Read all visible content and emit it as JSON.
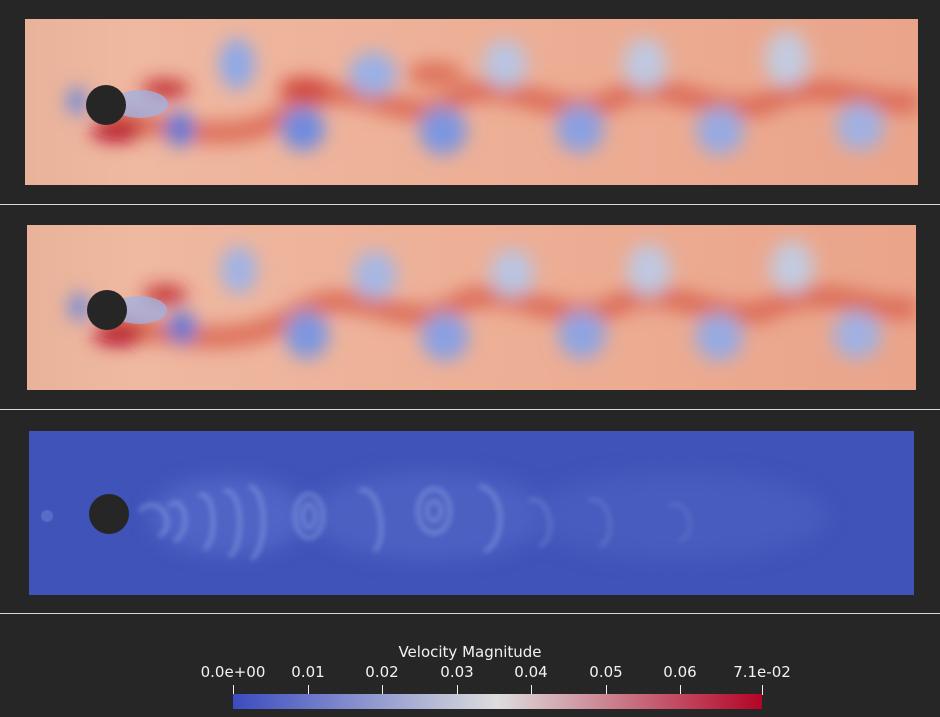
{
  "scalar_bar": {
    "title": "Velocity Magnitude",
    "range": [
      0,
      0.071
    ],
    "ticks": [
      {
        "value": 0.0,
        "label": "0.0e+00"
      },
      {
        "value": 0.01,
        "label": "0.01"
      },
      {
        "value": 0.02,
        "label": "0.02"
      },
      {
        "value": 0.03,
        "label": "0.03"
      },
      {
        "value": 0.04,
        "label": "0.04"
      },
      {
        "value": 0.05,
        "label": "0.05"
      },
      {
        "value": 0.06,
        "label": "0.06"
      },
      {
        "value": 0.071,
        "label": "7.1e-02"
      }
    ],
    "colormap": "Cool to Warm",
    "colormap_colors": [
      "#3b4cc0",
      "#dddddd",
      "#b40426"
    ]
  },
  "viewports": [
    {
      "id": "view-1",
      "field": "velocity-magnitude",
      "style": "vortex-street"
    },
    {
      "id": "view-2",
      "field": "velocity-magnitude",
      "style": "vortex-street"
    },
    {
      "id": "view-3",
      "field": "velocity-magnitude",
      "style": "low-magnitude-error"
    }
  ],
  "colors": {
    "background": "#262626",
    "divider": "#d9d9d9",
    "text": "#f2f2f2"
  }
}
